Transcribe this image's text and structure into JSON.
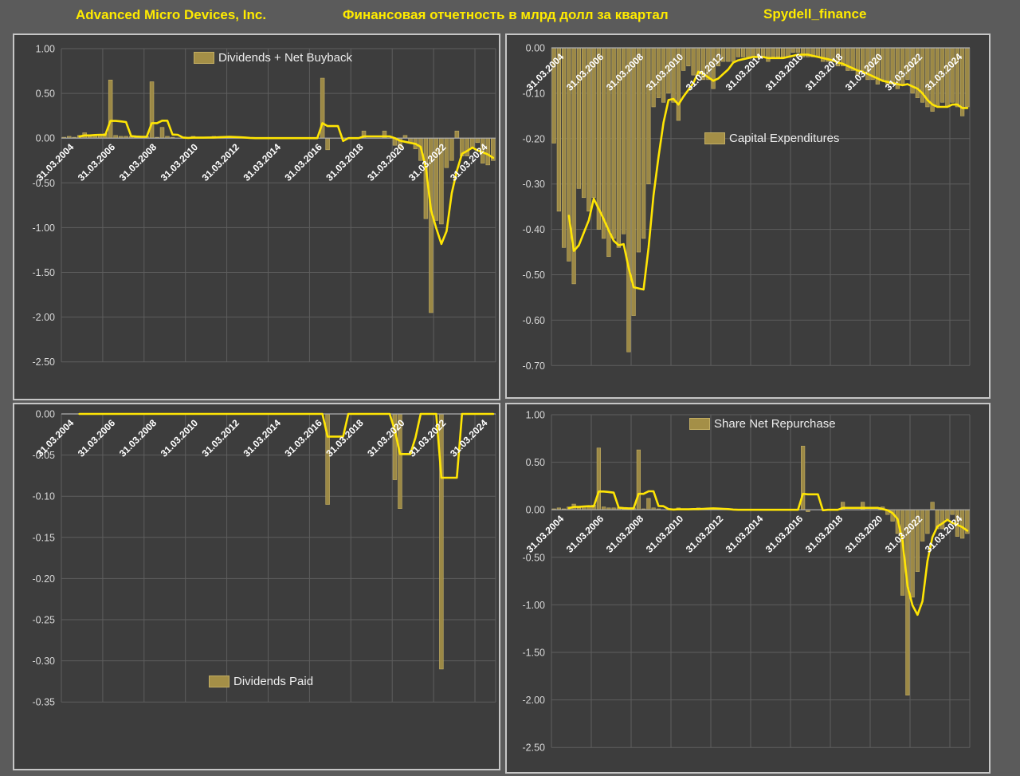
{
  "header": {
    "company": "Advanced Micro Devices, Inc.",
    "subtitle": "Финансовая отчетность в млрд долл за квартал",
    "watermark": "Spydell_finance"
  },
  "colors": {
    "page_background": "#5b5b5b",
    "panel_background": "#3d3d3d",
    "bar_fill": "#a48f47",
    "bar_edge": "#c3ae63",
    "line": "#ffe504",
    "header_text": "#ffeb00",
    "gridline": "#5e5e5e",
    "axis_label": "#d9d9d9",
    "date_label": "#ffffff"
  },
  "x_labels": [
    "31.03.2004",
    "31.03.2006",
    "31.03.2008",
    "31.03.2010",
    "31.03.2012",
    "31.03.2014",
    "31.03.2016",
    "31.03.2018",
    "31.03.2020",
    "31.03.2022",
    "31.03.2024"
  ],
  "chart_data": [
    {
      "type": "bar",
      "legend": "Dividends + Net Buyback",
      "x_note": "quarterly, 31.03.2004 - 31.12.2024",
      "line_overlay": "4-quarter moving average",
      "ylim": [
        -2.5,
        1.0
      ],
      "y_ticks": [
        "1.00",
        "0.50",
        "0.00",
        "-0.50",
        "-1.00",
        "-1.50",
        "-2.00",
        "-2.50"
      ],
      "values": [
        0.01,
        0.02,
        0.01,
        0.03,
        0.06,
        0.02,
        0.03,
        0.04,
        0.05,
        0.65,
        0.03,
        0.02,
        0.02,
        0.02,
        0.01,
        0.01,
        0.02,
        0.63,
        0.01,
        0.12,
        0.02,
        0.01,
        0,
        0,
        0,
        0.02,
        0,
        0,
        0.01,
        0.02,
        0.01,
        0.01,
        0.02,
        0.01,
        0,
        0,
        0,
        0,
        0,
        0,
        0,
        0,
        0,
        0,
        0,
        0,
        0,
        0,
        0,
        0,
        0.67,
        -0.13,
        0,
        0,
        0,
        0,
        0,
        0,
        0.08,
        0,
        0,
        0,
        0.08,
        0,
        -0.08,
        -0.115,
        0.03,
        -0.05,
        -0.12,
        -0.25,
        -0.9,
        -1.95,
        -0.92,
        -0.96,
        -0.33,
        -0.25,
        0.08,
        -0.2,
        -0.2,
        -0.1,
        -0.05,
        -0.28,
        -0.3,
        -0.25
      ]
    },
    {
      "type": "bar",
      "legend": "Capital Expenditures",
      "x_note": "quarterly, 31.03.2004 - 31.12.2024",
      "line_overlay": "4-quarter moving average",
      "ylim": [
        -0.7,
        0.0
      ],
      "y_ticks": [
        "0.00",
        "-0.10",
        "-0.20",
        "-0.30",
        "-0.40",
        "-0.50",
        "-0.60",
        "-0.70"
      ],
      "values": [
        -0.21,
        -0.36,
        -0.44,
        -0.47,
        -0.52,
        -0.31,
        -0.33,
        -0.36,
        -0.33,
        -0.4,
        -0.42,
        -0.46,
        -0.42,
        -0.44,
        -0.41,
        -0.67,
        -0.59,
        -0.45,
        -0.42,
        -0.3,
        -0.13,
        -0.11,
        -0.12,
        -0.1,
        -0.12,
        -0.16,
        -0.05,
        -0.04,
        -0.06,
        -0.06,
        -0.07,
        -0.07,
        -0.09,
        -0.04,
        -0.03,
        -0.03,
        -0.03,
        -0.02,
        -0.02,
        -0.02,
        -0.02,
        -0.02,
        -0.02,
        -0.03,
        -0.02,
        -0.02,
        -0.02,
        -0.02,
        -0.01,
        -0.01,
        -0.02,
        -0.02,
        -0.02,
        -0.02,
        -0.03,
        -0.03,
        -0.03,
        -0.04,
        -0.04,
        -0.05,
        -0.05,
        -0.06,
        -0.05,
        -0.07,
        -0.07,
        -0.08,
        -0.07,
        -0.08,
        -0.08,
        -0.09,
        -0.08,
        -0.07,
        -0.1,
        -0.11,
        -0.12,
        -0.13,
        -0.14,
        -0.13,
        -0.12,
        -0.13,
        -0.12,
        -0.13,
        -0.15,
        -0.13
      ]
    },
    {
      "type": "bar",
      "legend": "Dividends Paid",
      "x_note": "quarterly, 31.03.2004 - 31.12.2024",
      "line_overlay": "4-quarter moving average",
      "ylim": [
        -0.35,
        0.0
      ],
      "y_ticks": [
        "0.00",
        "-0.05",
        "-0.10",
        "-0.15",
        "-0.20",
        "-0.25",
        "-0.30",
        "-0.35"
      ],
      "values": [
        0,
        0,
        0,
        0,
        0,
        0,
        0,
        0,
        0,
        0,
        0,
        0,
        0,
        0,
        0,
        0,
        0,
        0,
        0,
        0,
        0,
        0,
        0,
        0,
        0,
        0,
        0,
        0,
        0,
        0,
        0,
        0,
        0,
        0,
        0,
        0,
        0,
        0,
        0,
        0,
        0,
        0,
        0,
        0,
        0,
        0,
        0,
        0,
        0,
        0,
        0,
        -0.11,
        0,
        0,
        0,
        0,
        0,
        0,
        0,
        0,
        0,
        0,
        0,
        0,
        -0.08,
        -0.115,
        0,
        0,
        0,
        0,
        0,
        0,
        0,
        -0.31,
        0,
        0,
        0,
        0,
        0,
        0,
        0,
        0,
        0,
        0
      ]
    },
    {
      "type": "bar",
      "legend": "Share Net Repurchase",
      "x_note": "quarterly, 31.03.2004 - 31.12.2024",
      "line_overlay": "4-quarter moving average",
      "ylim": [
        -2.5,
        1.0
      ],
      "y_ticks": [
        "1.00",
        "0.50",
        "0.00",
        "-0.50",
        "-1.00",
        "-1.50",
        "-2.00",
        "-2.50"
      ],
      "values": [
        0.01,
        0.02,
        0.01,
        0.03,
        0.06,
        0.02,
        0.03,
        0.04,
        0.05,
        0.65,
        0.03,
        0.02,
        0.02,
        0.02,
        0.01,
        0.01,
        0.02,
        0.63,
        0.01,
        0.12,
        0.02,
        0.01,
        0,
        0,
        0,
        0.02,
        0,
        0,
        0.01,
        0.02,
        0.01,
        0.01,
        0.02,
        0.01,
        0,
        0,
        0,
        0,
        0,
        0,
        0,
        0,
        0,
        0,
        0,
        0,
        0,
        0,
        0,
        0,
        0.67,
        -0.02,
        0,
        0,
        0,
        0,
        0,
        0,
        0.08,
        0,
        0,
        0,
        0.08,
        0,
        0,
        0,
        0.03,
        -0.05,
        -0.12,
        -0.25,
        -0.9,
        -1.95,
        -0.92,
        -0.65,
        -0.33,
        -0.25,
        0.08,
        -0.2,
        -0.2,
        -0.1,
        -0.05,
        -0.28,
        -0.3,
        -0.25
      ]
    }
  ]
}
